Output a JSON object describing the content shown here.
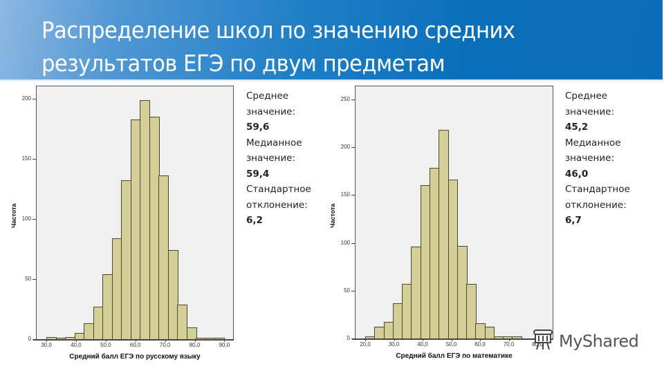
{
  "header": {
    "title_line1": "Распределение школ по значению средних",
    "title_line2": "результатов ЕГЭ по двум предметам"
  },
  "left_stats": {
    "mean_label_1": "Среднее",
    "mean_label_2": "значение:",
    "mean_value": "59,6",
    "median_label_1": "Медианное",
    "median_label_2": "значение:",
    "median_value": "59,4",
    "std_label_1": "Стандартное",
    "std_label_2": "отклонение:",
    "std_value": "6,2"
  },
  "right_stats": {
    "mean_label_1": "Среднее",
    "mean_label_2": "значение:",
    "mean_value": "45,2",
    "median_label_1": "Медианное",
    "median_label_2": "значение:",
    "median_value": "46,0",
    "std_label_1": "Стандартное",
    "std_label_2": "отклонение:",
    "std_value": "6,7"
  },
  "watermark": {
    "text": "MyShared",
    "icon": "projector-screen-icon"
  },
  "colors": {
    "bar_fill": "#d3cf97",
    "bar_stroke": "#4a4630",
    "plot_bg": "#f0f0f0",
    "header_blue": "#0a6fba"
  },
  "chart_data": [
    {
      "type": "bar",
      "title": "Средний балл ЕГЭ по русскому языку",
      "xlabel": "Средний балл ЕГЭ по русскому языку",
      "ylabel": "Частота",
      "x_ticks": [
        "30,0",
        "40,0",
        "50,0",
        "60,0",
        "70,0",
        "80,0",
        "90,0"
      ],
      "y_ticks": [
        "0",
        "50",
        "100",
        "150",
        "200"
      ],
      "xlim": [
        28,
        93
      ],
      "ylim": [
        0,
        210
      ],
      "bin_start": 30.0,
      "bin_width": 3.15,
      "categories": [
        "30,0-33,2",
        "33,2-36,3",
        "36,3-39,5",
        "39,5-42,6",
        "42,6-45,8",
        "45,8-48,9",
        "48,9-52,1",
        "52,1-55,2",
        "55,2-58,4",
        "58,4-61,5",
        "61,5-64,7",
        "64,7-67,8",
        "67,8-71,0",
        "71,0-74,1",
        "74,1-77,3",
        "77,3-80,4",
        "80,4-83,6",
        "83,6-86,7",
        "86,7-89,9"
      ],
      "values": [
        2,
        1,
        2,
        5,
        13,
        27,
        54,
        84,
        132,
        183,
        199,
        185,
        136,
        74,
        29,
        10,
        1,
        1,
        1
      ],
      "grid": false,
      "legend": null
    },
    {
      "type": "bar",
      "title": "Средний балл ЕГЭ по математике",
      "xlabel": "Средний балл ЕГЭ по математике",
      "ylabel": "Частота",
      "x_ticks": [
        "20,0",
        "30,0",
        "40,0",
        "50,0",
        "60,0",
        "70,0",
        "80,0"
      ],
      "y_ticks": [
        "0",
        "50",
        "100",
        "150",
        "200",
        "250"
      ],
      "xlim": [
        16,
        81
      ],
      "ylim": [
        0,
        265
      ],
      "bin_start": 20.0,
      "bin_width": 3.2,
      "categories": [
        "20,0-23,2",
        "23,2-26,4",
        "26,4-29,6",
        "29,6-32,8",
        "32,8-36,0",
        "36,0-39,2",
        "39,2-42,4",
        "42,4-45,6",
        "45,6-48,8",
        "48,8-52,0",
        "52,0-55,2",
        "55,2-58,4",
        "58,4-61,6",
        "61,6-64,8",
        "64,8-68,0",
        "68,0-71,2",
        "71,2-74,4"
      ],
      "values": [
        2,
        12,
        17,
        37,
        57,
        96,
        160,
        178,
        218,
        166,
        97,
        57,
        16,
        12,
        2,
        2,
        2
      ],
      "grid": false,
      "legend": null
    }
  ]
}
